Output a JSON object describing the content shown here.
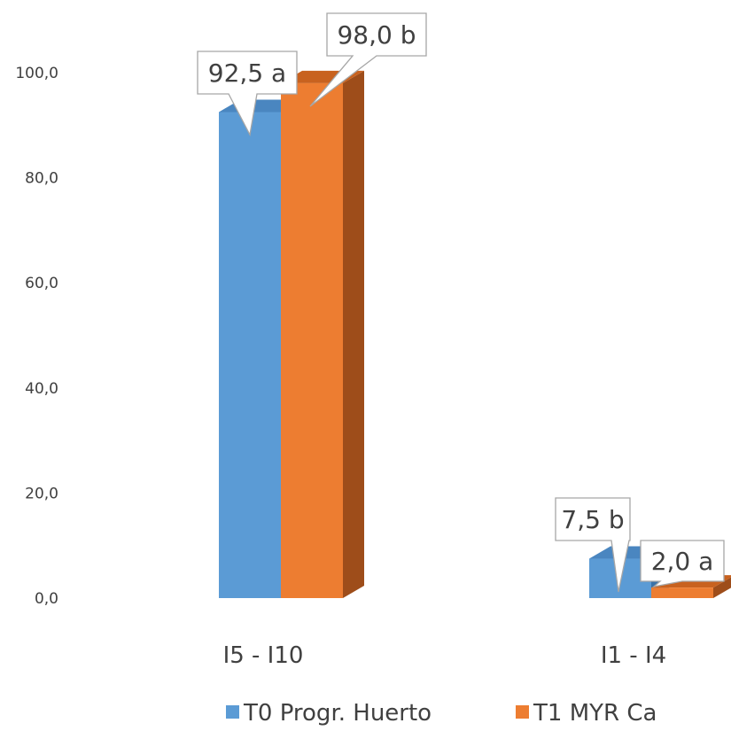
{
  "chart_data": {
    "type": "bar",
    "categories": [
      "I5 - I10",
      "I1 - I4"
    ],
    "series": [
      {
        "name": "T0 Progr. Huerto",
        "values": [
          92.5,
          7.5
        ],
        "labels": [
          "92,5 a",
          "7,5 b"
        ],
        "color": "#5B9BD5",
        "side_color": "#3A72A8",
        "top_color": "#4A86C0"
      },
      {
        "name": "T1 MYR Ca",
        "values": [
          98.0,
          2.0
        ],
        "labels": [
          "98,0 b",
          "2,0 a"
        ],
        "color": "#ED7D31",
        "side_color": "#9E4D1A",
        "top_color": "#C8621F"
      }
    ],
    "yticks": [
      "0,0",
      "20,0",
      "40,0",
      "60,0",
      "80,0",
      "100,0"
    ],
    "ylim": [
      0,
      100
    ],
    "gridlines": false,
    "legend_position": "bottom",
    "bar_style": "3d"
  }
}
